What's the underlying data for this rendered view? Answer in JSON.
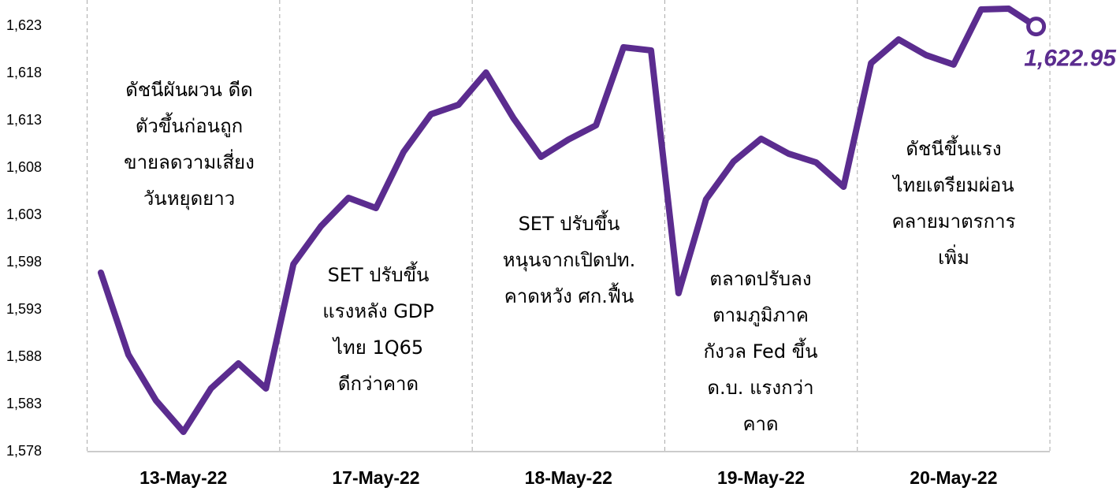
{
  "chart_data": {
    "type": "line",
    "categories": [
      null,
      null,
      null,
      "13-May-22",
      null,
      null,
      null,
      null,
      null,
      null,
      "17-May-22",
      null,
      null,
      null,
      null,
      null,
      null,
      "18-May-22",
      null,
      null,
      null,
      null,
      null,
      null,
      "19-May-22",
      null,
      null,
      null,
      null,
      null,
      null,
      "20-May-22",
      null,
      null,
      null
    ],
    "series": [
      {
        "color": "#5b2c8f",
        "values": [
          1596.92,
          1588.25,
          1583.42,
          1580.08,
          1584.67,
          1587.33,
          1584.67,
          1597.83,
          1601.83,
          1604.83,
          1603.75,
          1609.67,
          1613.67,
          1614.67,
          1618.08,
          1613.25,
          1609.17,
          1611.0,
          1612.5,
          1620.75,
          1620.42,
          1594.75,
          1604.67,
          1608.67,
          1611.08,
          1609.5,
          1608.58,
          1606.0,
          1619.08,
          1621.58,
          1619.92,
          1618.92,
          1624.75,
          1624.83,
          1622.95
        ],
        "value_labels": [
          null,
          null,
          null,
          null,
          null,
          null,
          null,
          null,
          null,
          null,
          null,
          null,
          null,
          null,
          null,
          null,
          null,
          null,
          null,
          null,
          null,
          null,
          null,
          null,
          null,
          null,
          null,
          null,
          null,
          null,
          null,
          null,
          null,
          null,
          "1,622.95"
        ]
      }
    ],
    "ylim": [
      1578,
      1625
    ],
    "yticks": [
      {
        "value": 1578,
        "label": "1,578"
      },
      {
        "value": 1583,
        "label": "1,583"
      },
      {
        "value": 1588,
        "label": "1,588"
      },
      {
        "value": 1593,
        "label": "1,593"
      },
      {
        "value": 1598,
        "label": "1,598"
      },
      {
        "value": 1603,
        "label": "1,603"
      },
      {
        "value": 1608,
        "label": "1,608"
      },
      {
        "value": 1613,
        "label": "1,613"
      },
      {
        "value": 1618,
        "label": "1,618"
      },
      {
        "value": 1623,
        "label": "1,623"
      }
    ],
    "annotations": [
      [
        "ดัชนีผันผวน ดีด",
        "ตัวขึ้นก่อนถูก",
        "ขายลดวามเสี่ยง",
        "วันหยุดยาว"
      ],
      [
        "SET ปรับขึ้น",
        "แรงหลัง GDP",
        "ไทย 1Q65",
        "ดีกว่าคาด"
      ],
      [
        "SET ปรับขึ้น",
        "หนุนจากเปิดปท.",
        "คาดหวัง ศก.ฟื้น"
      ],
      [
        "ตลาดปรับลง",
        "ตามภูมิภาค",
        "กังวล Fed ขึ้น",
        "ด.บ. แรงกว่า",
        "คาด"
      ],
      [
        "ดัชนีขึ้นแรง",
        "ไทยเตรียมผ่อน",
        "คลายมาตรการ",
        "เพิ่ม"
      ]
    ]
  }
}
